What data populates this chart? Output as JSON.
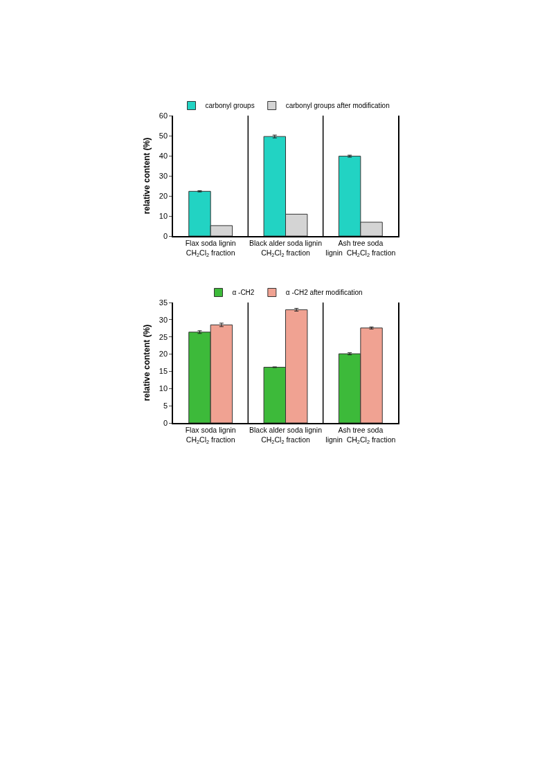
{
  "chart_data": [
    {
      "type": "bar",
      "ylabel": "relative content (%)",
      "categories": [
        "Flax soda lignin\nCH$_{2}$Cl$_{2}$ fraction",
        "Black alder soda lignin\nCH$_{2}$Cl$_{2}$ fraction",
        "Ash tree soda\nlignin  CH$_{2}$Cl$_{2}$ fraction"
      ],
      "series": [
        {
          "name": "carbonyl groups",
          "color": "#22d3c3",
          "values": [
            22.3,
            49.6,
            39.8
          ],
          "errors": [
            0.3,
            0.7,
            0.5
          ]
        },
        {
          "name": "carbonyl groups after modification",
          "color": "#d4d4d4",
          "values": [
            5.2,
            10.9,
            6.9
          ]
        }
      ],
      "ylim": [
        0,
        60
      ],
      "yticks": [
        0,
        10,
        20,
        30,
        40,
        50,
        60
      ],
      "grid": false,
      "legend": "top"
    },
    {
      "type": "bar",
      "ylabel": "relative content (%)",
      "categories": [
        "Flax soda lignin\nCH$_{2}$Cl$_{2}$ fraction",
        "Black alder soda lignin\nCH$_{2}$Cl$_{2}$ fraction",
        "Ash tree soda\nlignin  CH$_{2}$Cl$_{2}$ fraction"
      ],
      "series": [
        {
          "name": "α -CH2",
          "color": "#3dba3a",
          "values": [
            26.4,
            16.2,
            20.1
          ],
          "errors": [
            0.4,
            0.1,
            0.3
          ]
        },
        {
          "name": "α -CH2 after modification",
          "color": "#f0a292",
          "values": [
            28.5,
            32.9,
            27.6
          ],
          "errors": [
            0.5,
            0.4,
            0.3
          ]
        }
      ],
      "ylim": [
        0,
        35
      ],
      "yticks": [
        0,
        5,
        10,
        15,
        20,
        25,
        30,
        35
      ],
      "grid": false,
      "legend": "top"
    }
  ]
}
